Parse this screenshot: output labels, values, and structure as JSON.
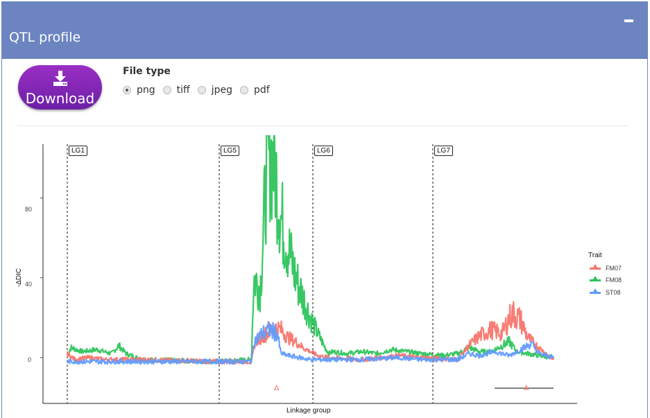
{
  "panel": {
    "title": "QTL profile",
    "header_color": "#6c85c1"
  },
  "download": {
    "label": "Download",
    "icon": "download-icon"
  },
  "file_type": {
    "label": "File type",
    "options": [
      {
        "label": "png",
        "checked": true
      },
      {
        "label": "tiff",
        "checked": false
      },
      {
        "label": "jpeg",
        "checked": false
      },
      {
        "label": "pdf",
        "checked": false
      }
    ]
  },
  "chart_data": {
    "type": "line",
    "xlabel": "Linkage group",
    "ylabel": "-ΔDIC",
    "ylim": [
      -23,
      107
    ],
    "yticks": [
      0,
      40,
      80
    ],
    "linkage_groups": [
      "LG1",
      "LG5",
      "LG6",
      "LG7"
    ],
    "legend": {
      "title": "Trait",
      "placement": "right"
    },
    "series": [
      {
        "name": "FM07",
        "color": "#f8766d",
        "profile": [
          [
            0,
            2
          ],
          [
            10,
            -1
          ],
          [
            30,
            0
          ],
          [
            50,
            -1
          ],
          [
            100,
            -1
          ],
          [
            200,
            -2
          ],
          [
            250,
            -2
          ],
          [
            255,
            8
          ],
          [
            270,
            12
          ],
          [
            280,
            15
          ],
          [
            290,
            14
          ],
          [
            300,
            10
          ],
          [
            310,
            8
          ],
          [
            320,
            5
          ],
          [
            330,
            3
          ],
          [
            340,
            1
          ],
          [
            355,
            0
          ],
          [
            400,
            -1
          ],
          [
            450,
            1
          ],
          [
            480,
            0
          ],
          [
            530,
            -1
          ],
          [
            545,
            6
          ],
          [
            560,
            11
          ],
          [
            575,
            14
          ],
          [
            590,
            12
          ],
          [
            600,
            20
          ],
          [
            605,
            22
          ],
          [
            615,
            19
          ],
          [
            625,
            10
          ],
          [
            640,
            5
          ],
          [
            660,
            -1
          ]
        ]
      },
      {
        "name": "FM08",
        "color": "#2ec45c",
        "profile": [
          [
            0,
            1
          ],
          [
            5,
            5
          ],
          [
            20,
            3
          ],
          [
            40,
            4
          ],
          [
            60,
            2
          ],
          [
            70,
            6
          ],
          [
            80,
            2
          ],
          [
            100,
            -1
          ],
          [
            200,
            -2
          ],
          [
            250,
            -1
          ],
          [
            253,
            40
          ],
          [
            262,
            35
          ],
          [
            270,
            90
          ],
          [
            275,
            103
          ],
          [
            282,
            95
          ],
          [
            290,
            70
          ],
          [
            300,
            55
          ],
          [
            310,
            40
          ],
          [
            320,
            30
          ],
          [
            330,
            20
          ],
          [
            340,
            12
          ],
          [
            350,
            5
          ],
          [
            355,
            2
          ],
          [
            360,
            3
          ],
          [
            380,
            2
          ],
          [
            400,
            3
          ],
          [
            420,
            2
          ],
          [
            440,
            4
          ],
          [
            460,
            3
          ],
          [
            480,
            2
          ],
          [
            510,
            1
          ],
          [
            530,
            2
          ],
          [
            545,
            5
          ],
          [
            560,
            3
          ],
          [
            575,
            3
          ],
          [
            590,
            6
          ],
          [
            600,
            8
          ],
          [
            610,
            3
          ],
          [
            625,
            2
          ],
          [
            640,
            1
          ],
          [
            660,
            0
          ]
        ]
      },
      {
        "name": "ST08",
        "color": "#619cff",
        "profile": [
          [
            0,
            -2
          ],
          [
            50,
            -2
          ],
          [
            100,
            -2
          ],
          [
            200,
            -2
          ],
          [
            250,
            -2
          ],
          [
            253,
            8
          ],
          [
            265,
            12
          ],
          [
            275,
            14
          ],
          [
            285,
            12
          ],
          [
            290,
            2
          ],
          [
            300,
            1
          ],
          [
            330,
            -1
          ],
          [
            355,
            -1
          ],
          [
            400,
            -1
          ],
          [
            450,
            0
          ],
          [
            480,
            -1
          ],
          [
            530,
            -1
          ],
          [
            545,
            2
          ],
          [
            560,
            1
          ],
          [
            580,
            3
          ],
          [
            600,
            1
          ],
          [
            620,
            5
          ],
          [
            630,
            7
          ],
          [
            640,
            2
          ],
          [
            660,
            0
          ]
        ]
      }
    ],
    "qtl_markers": [
      {
        "group": "LG5",
        "position": 284
      },
      {
        "group": "LG7",
        "position": 623,
        "interval": [
          580,
          660
        ]
      }
    ]
  }
}
